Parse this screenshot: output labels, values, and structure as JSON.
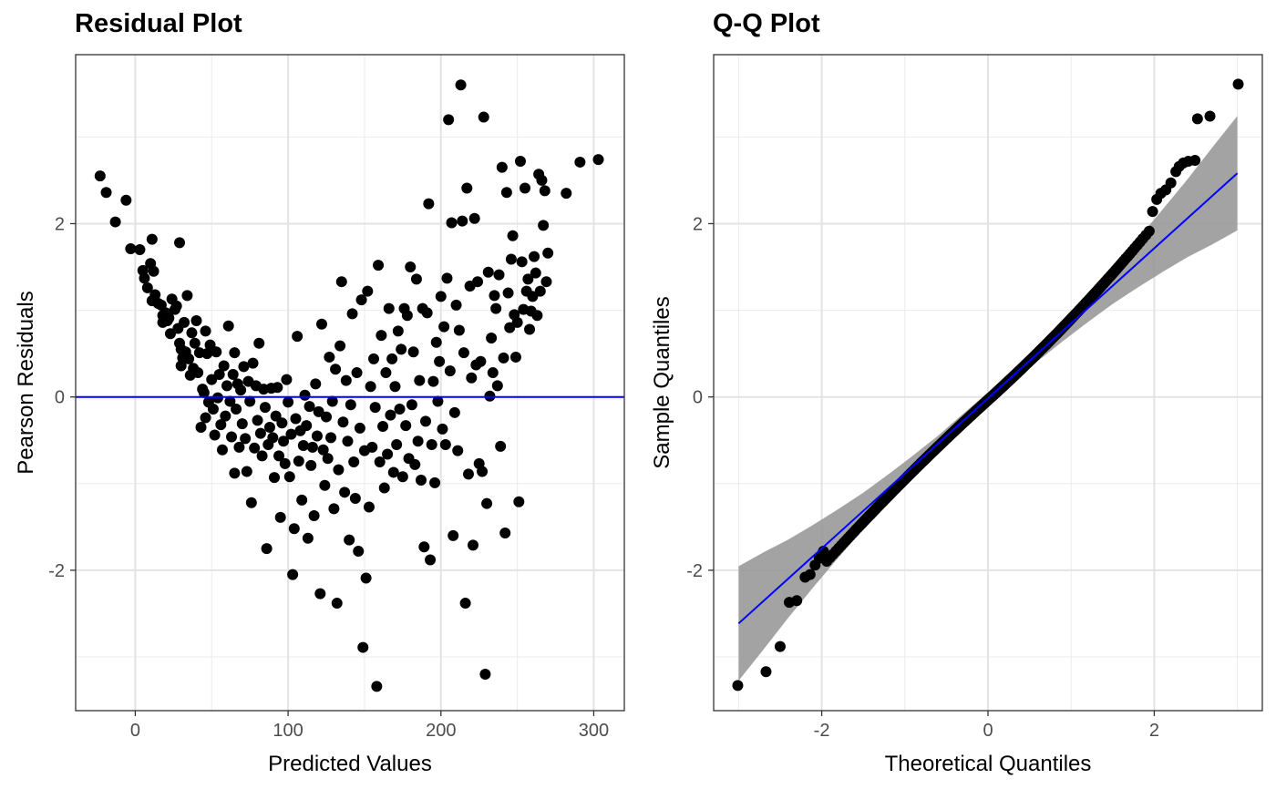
{
  "chart_data": [
    {
      "type": "scatter",
      "title": "Residual Plot",
      "xlabel": "Predicted Values",
      "ylabel": "Pearson Residuals",
      "xlim": [
        -39,
        320
      ],
      "ylim": [
        -3.62,
        3.95
      ],
      "xticks": [
        0,
        100,
        200,
        300
      ],
      "yticks": [
        -2,
        0,
        2
      ],
      "grid": true,
      "reference_line": {
        "y": 0,
        "color": "#0000ff"
      },
      "points_color": "#000000",
      "points": [
        [
          -23,
          2.55
        ],
        [
          -19,
          2.36
        ],
        [
          -13,
          2.02
        ],
        [
          -6,
          2.27
        ],
        [
          -3,
          1.71
        ],
        [
          3,
          1.7
        ],
        [
          5,
          1.46
        ],
        [
          6,
          1.37
        ],
        [
          8,
          1.26
        ],
        [
          10,
          1.54
        ],
        [
          11,
          1.82
        ],
        [
          11,
          1.11
        ],
        [
          12,
          1.45
        ],
        [
          13,
          1.18
        ],
        [
          15,
          1.08
        ],
        [
          17,
          1.06
        ],
        [
          18,
          0.94
        ],
        [
          18,
          0.86
        ],
        [
          20,
          0.97
        ],
        [
          21,
          0.88
        ],
        [
          22,
          0.91
        ],
        [
          23,
          0.73
        ],
        [
          24,
          1.13
        ],
        [
          26,
          1.01
        ],
        [
          27,
          1.05
        ],
        [
          28,
          0.79
        ],
        [
          29,
          0.62
        ],
        [
          29,
          1.78
        ],
        [
          30,
          0.55
        ],
        [
          30,
          0.36
        ],
        [
          31,
          0.45
        ],
        [
          32,
          0.86
        ],
        [
          33,
          0.52
        ],
        [
          34,
          1.17
        ],
        [
          35,
          0.44
        ],
        [
          36,
          0.25
        ],
        [
          37,
          0.74
        ],
        [
          38,
          0.33
        ],
        [
          39,
          0.62
        ],
        [
          40,
          0.88
        ],
        [
          41,
          0.28
        ],
        [
          42,
          0.51
        ],
        [
          43,
          -0.35
        ],
        [
          44,
          0.09
        ],
        [
          45,
          0.05
        ],
        [
          46,
          0.76
        ],
        [
          46,
          -0.24
        ],
        [
          47,
          0.5
        ],
        [
          48,
          -0.06
        ],
        [
          49,
          0.6
        ],
        [
          50,
          0.2
        ],
        [
          51,
          -0.14
        ],
        [
          52,
          -0.44
        ],
        [
          53,
          0.52
        ],
        [
          54,
          -0.01
        ],
        [
          55,
          0.26
        ],
        [
          56,
          -0.32
        ],
        [
          57,
          -0.61
        ],
        [
          58,
          0.36
        ],
        [
          59,
          -0.22
        ],
        [
          60,
          0.13
        ],
        [
          61,
          0.82
        ],
        [
          62,
          -0.05
        ],
        [
          63,
          -0.46
        ],
        [
          64,
          0.26
        ],
        [
          65,
          0.51
        ],
        [
          65,
          -0.88
        ],
        [
          66,
          -0.14
        ],
        [
          67,
          0.15
        ],
        [
          68,
          -0.58
        ],
        [
          69,
          0.08
        ],
        [
          70,
          -0.31
        ],
        [
          71,
          0.35
        ],
        [
          72,
          -0.48
        ],
        [
          73,
          -0.86
        ],
        [
          74,
          0.18
        ],
        [
          75,
          -0.05
        ],
        [
          76,
          -1.22
        ],
        [
          77,
          0.39
        ],
        [
          78,
          -0.59
        ],
        [
          79,
          0.13
        ],
        [
          80,
          -0.27
        ],
        [
          81,
          0.62
        ],
        [
          82,
          -0.42
        ],
        [
          83,
          -0.68
        ],
        [
          84,
          0.09
        ],
        [
          85,
          -0.12
        ],
        [
          86,
          -1.75
        ],
        [
          87,
          -0.55
        ],
        [
          88,
          -0.35
        ],
        [
          89,
          0.1
        ],
        [
          90,
          -0.47
        ],
        [
          91,
          -0.93
        ],
        [
          92,
          -0.22
        ],
        [
          93,
          0.11
        ],
        [
          94,
          -0.68
        ],
        [
          95,
          -1.39
        ],
        [
          96,
          -0.3
        ],
        [
          97,
          -0.51
        ],
        [
          98,
          -0.77
        ],
        [
          99,
          0.2
        ],
        [
          100,
          -0.06
        ],
        [
          101,
          -0.92
        ],
        [
          102,
          -0.43
        ],
        [
          103,
          -2.05
        ],
        [
          104,
          -1.52
        ],
        [
          105,
          -0.25
        ],
        [
          106,
          0.7
        ],
        [
          107,
          -0.74
        ],
        [
          108,
          -0.39
        ],
        [
          109,
          -1.19
        ],
        [
          110,
          -0.56
        ],
        [
          111,
          0.02
        ],
        [
          112,
          -0.33
        ],
        [
          113,
          -1.63
        ],
        [
          114,
          -0.11
        ],
        [
          115,
          -0.79
        ],
        [
          116,
          -0.58
        ],
        [
          117,
          -1.37
        ],
        [
          118,
          0.15
        ],
        [
          119,
          -0.45
        ],
        [
          120,
          -0.17
        ],
        [
          121,
          -2.27
        ],
        [
          122,
          0.84
        ],
        [
          123,
          -0.61
        ],
        [
          124,
          -1.02
        ],
        [
          125,
          -0.23
        ],
        [
          126,
          -0.71
        ],
        [
          127,
          0.46
        ],
        [
          128,
          -0.47
        ],
        [
          129,
          -0.05
        ],
        [
          130,
          -1.29
        ],
        [
          131,
          0.32
        ],
        [
          132,
          -2.38
        ],
        [
          133,
          -0.84
        ],
        [
          134,
          0.59
        ],
        [
          135,
          1.33
        ],
        [
          136,
          -0.29
        ],
        [
          137,
          -1.1
        ],
        [
          138,
          0.19
        ],
        [
          139,
          -0.51
        ],
        [
          140,
          -1.65
        ],
        [
          141,
          -0.09
        ],
        [
          142,
          0.96
        ],
        [
          143,
          -0.75
        ],
        [
          144,
          -1.17
        ],
        [
          145,
          0.28
        ],
        [
          146,
          -1.78
        ],
        [
          147,
          -0.36
        ],
        [
          148,
          1.12
        ],
        [
          149,
          -2.89
        ],
        [
          150,
          -0.62
        ],
        [
          151,
          -2.09
        ],
        [
          152,
          1.22
        ],
        [
          153,
          -1.27
        ],
        [
          154,
          0.12
        ],
        [
          155,
          -0.58
        ],
        [
          156,
          0.44
        ],
        [
          157,
          -0.12
        ],
        [
          158,
          -3.34
        ],
        [
          159,
          1.52
        ],
        [
          160,
          -0.75
        ],
        [
          161,
          0.71
        ],
        [
          162,
          -0.34
        ],
        [
          163,
          -1.05
        ],
        [
          164,
          0.28
        ],
        [
          165,
          -0.66
        ],
        [
          166,
          1.02
        ],
        [
          167,
          -0.21
        ],
        [
          168,
          0.44
        ],
        [
          169,
          -0.87
        ],
        [
          170,
          0.12
        ],
        [
          171,
          -0.55
        ],
        [
          172,
          0.76
        ],
        [
          173,
          -0.14
        ],
        [
          174,
          0.55
        ],
        [
          175,
          -0.92
        ],
        [
          176,
          1.02
        ],
        [
          177,
          -0.33
        ],
        [
          178,
          0.94
        ],
        [
          179,
          -0.71
        ],
        [
          180,
          1.5
        ],
        [
          181,
          -0.09
        ],
        [
          182,
          0.52
        ],
        [
          183,
          -0.78
        ],
        [
          184,
          1.36
        ],
        [
          185,
          -0.51
        ],
        [
          186,
          0.19
        ],
        [
          187,
          -0.96
        ],
        [
          188,
          1.02
        ],
        [
          189,
          -1.73
        ],
        [
          190,
          -0.28
        ],
        [
          191,
          0.97
        ],
        [
          192,
          2.23
        ],
        [
          193,
          -1.88
        ],
        [
          194,
          -0.55
        ],
        [
          195,
          0.18
        ],
        [
          196,
          -0.99
        ],
        [
          197,
          0.63
        ],
        [
          198,
          -0.05
        ],
        [
          199,
          0.41
        ],
        [
          200,
          1.16
        ],
        [
          201,
          -0.37
        ],
        [
          202,
          0.81
        ],
        [
          203,
          -0.55
        ],
        [
          204,
          1.37
        ],
        [
          205,
          3.2
        ],
        [
          206,
          0.3
        ],
        [
          207,
          2.01
        ],
        [
          208,
          -1.6
        ],
        [
          209,
          -0.18
        ],
        [
          210,
          1.06
        ],
        [
          211,
          -0.62
        ],
        [
          212,
          0.77
        ],
        [
          213,
          3.6
        ],
        [
          214,
          2.03
        ],
        [
          215,
          0.51
        ],
        [
          216,
          -2.38
        ],
        [
          217,
          2.41
        ],
        [
          218,
          -0.89
        ],
        [
          219,
          1.28
        ],
        [
          220,
          0.22
        ],
        [
          221,
          -1.71
        ],
        [
          222,
          2.06
        ],
        [
          223,
          0.37
        ],
        [
          224,
          1.33
        ],
        [
          225,
          -0.77
        ],
        [
          226,
          0.41
        ],
        [
          227,
          -0.86
        ],
        [
          228,
          3.23
        ],
        [
          229,
          -3.2
        ],
        [
          230,
          -1.23
        ],
        [
          231,
          1.44
        ],
        [
          232,
          0.01
        ],
        [
          233,
          0.68
        ],
        [
          234,
          0.28
        ],
        [
          235,
          1.17
        ],
        [
          236,
          1.02
        ],
        [
          237,
          0.13
        ],
        [
          238,
          1.41
        ],
        [
          239,
          -0.57
        ],
        [
          240,
          2.65
        ],
        [
          241,
          0.45
        ],
        [
          242,
          -1.57
        ],
        [
          243,
          2.36
        ],
        [
          244,
          1.2
        ],
        [
          245,
          0.8
        ],
        [
          246,
          1.59
        ],
        [
          247,
          1.86
        ],
        [
          248,
          0.95
        ],
        [
          249,
          0.46
        ],
        [
          250,
          0.86
        ],
        [
          251,
          -1.21
        ],
        [
          252,
          2.72
        ],
        [
          253,
          1.56
        ],
        [
          254,
          1.01
        ],
        [
          255,
          2.41
        ],
        [
          256,
          1.22
        ],
        [
          257,
          1.36
        ],
        [
          258,
          0.78
        ],
        [
          259,
          0.99
        ],
        [
          260,
          1.16
        ],
        [
          261,
          1.62
        ],
        [
          262,
          1.43
        ],
        [
          263,
          0.94
        ],
        [
          264,
          2.57
        ],
        [
          265,
          1.22
        ],
        [
          266,
          2.5
        ],
        [
          267,
          1.98
        ],
        [
          268,
          2.38
        ],
        [
          269,
          1.33
        ],
        [
          270,
          1.66
        ],
        [
          282,
          2.35
        ],
        [
          291,
          2.71
        ],
        [
          303,
          2.74
        ]
      ]
    },
    {
      "type": "scatter",
      "title": "Q-Q Plot",
      "xlabel": "Theoretical Quantiles",
      "ylabel": "Sample Quantiles",
      "xlim": [
        -3.3,
        3.3
      ],
      "ylim": [
        -3.62,
        3.95
      ],
      "xticks": [
        -2,
        0,
        2
      ],
      "yticks": [
        -2,
        0,
        2
      ],
      "grid": true,
      "line_color": "#0000ff",
      "band_color": "#999999",
      "points_color": "#000000",
      "reference_line": {
        "slope": 0.866,
        "intercept": -0.016
      },
      "confidence_band_quantiles": [
        -3.0,
        -2.7,
        -2.4,
        -2.1,
        -1.8,
        -1.5,
        -1.2,
        -0.9,
        -0.6,
        -0.3,
        0.0,
        0.3,
        0.6,
        0.9,
        1.2,
        1.5,
        1.8,
        2.1,
        2.4,
        2.7,
        3.0
      ],
      "confidence_band_half_width": [
        0.66,
        0.56,
        0.45,
        0.36,
        0.28,
        0.21,
        0.16,
        0.12,
        0.09,
        0.08,
        0.07,
        0.08,
        0.09,
        0.12,
        0.16,
        0.21,
        0.28,
        0.36,
        0.45,
        0.56,
        0.66
      ],
      "n_points": 400,
      "tail_points": {
        "low": [
          [
            -3.01,
            -3.33
          ],
          [
            -2.67,
            -3.17
          ],
          [
            -2.5,
            -2.88
          ],
          [
            -2.39,
            -2.37
          ],
          [
            -2.3,
            -2.35
          ],
          [
            -2.2,
            -2.08
          ],
          [
            -2.14,
            -2.05
          ],
          [
            -2.08,
            -1.94
          ],
          [
            -2.03,
            -1.86
          ],
          [
            -1.98,
            -1.78
          ]
        ],
        "high": [
          [
            1.98,
            2.14
          ],
          [
            2.03,
            2.28
          ],
          [
            2.08,
            2.35
          ],
          [
            2.14,
            2.39
          ],
          [
            2.2,
            2.47
          ],
          [
            2.26,
            2.6
          ],
          [
            2.3,
            2.66
          ],
          [
            2.35,
            2.7
          ],
          [
            2.41,
            2.72
          ],
          [
            2.49,
            2.73
          ],
          [
            2.52,
            3.21
          ],
          [
            2.67,
            3.24
          ],
          [
            3.01,
            3.61
          ]
        ]
      }
    }
  ]
}
